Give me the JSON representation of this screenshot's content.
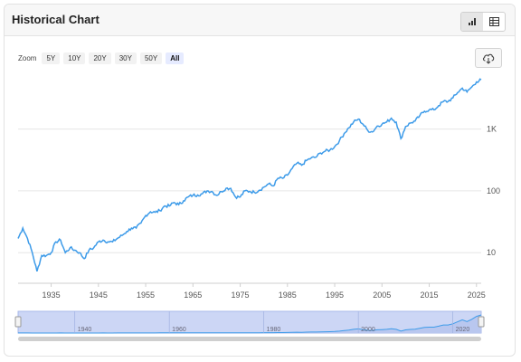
{
  "header": {
    "title": "Historical Chart"
  },
  "view_toggle": {
    "chart_icon": "bar-chart-icon",
    "table_icon": "table-icon"
  },
  "zoom": {
    "label": "Zoom",
    "options": [
      "5Y",
      "10Y",
      "20Y",
      "30Y",
      "50Y",
      "All"
    ],
    "selected": "All"
  },
  "download_icon": "cloud-download-icon",
  "colors": {
    "line": "#3d9be9",
    "navigator_fill": "#ccd6f5",
    "navigator_border": "#a9b9ea",
    "grid": "#e6e6e6"
  },
  "chart_data": {
    "type": "line",
    "y_scale": "log",
    "xlim": [
      1928,
      2026
    ],
    "ylim": [
      3.2,
      8000
    ],
    "x_ticks": [
      "1935",
      "1945",
      "1955",
      "1965",
      "1975",
      "1985",
      "1995",
      "2005",
      "2015",
      "2025"
    ],
    "y_ticks": [
      {
        "value": 10,
        "label": "10"
      },
      {
        "value": 100,
        "label": "100"
      },
      {
        "value": 1000,
        "label": "1K"
      }
    ],
    "series": [
      {
        "values": [
          [
            1928,
            17
          ],
          [
            1929,
            25
          ],
          [
            1930,
            17
          ],
          [
            1931,
            10
          ],
          [
            1932,
            5
          ],
          [
            1933,
            9
          ],
          [
            1934,
            9
          ],
          [
            1935,
            10
          ],
          [
            1936,
            15
          ],
          [
            1937,
            16
          ],
          [
            1938,
            10
          ],
          [
            1939,
            12
          ],
          [
            1940,
            11
          ],
          [
            1941,
            10
          ],
          [
            1942,
            8
          ],
          [
            1943,
            11
          ],
          [
            1944,
            12
          ],
          [
            1945,
            15
          ],
          [
            1946,
            16
          ],
          [
            1947,
            15
          ],
          [
            1948,
            15
          ],
          [
            1949,
            17
          ],
          [
            1950,
            19
          ],
          [
            1951,
            22
          ],
          [
            1952,
            25
          ],
          [
            1953,
            25
          ],
          [
            1954,
            30
          ],
          [
            1955,
            40
          ],
          [
            1956,
            46
          ],
          [
            1957,
            45
          ],
          [
            1958,
            48
          ],
          [
            1959,
            57
          ],
          [
            1960,
            57
          ],
          [
            1961,
            65
          ],
          [
            1962,
            60
          ],
          [
            1963,
            69
          ],
          [
            1964,
            80
          ],
          [
            1965,
            85
          ],
          [
            1966,
            86
          ],
          [
            1967,
            90
          ],
          [
            1968,
            100
          ],
          [
            1969,
            98
          ],
          [
            1970,
            85
          ],
          [
            1971,
            97
          ],
          [
            1972,
            110
          ],
          [
            1973,
            110
          ],
          [
            1974,
            80
          ],
          [
            1975,
            80
          ],
          [
            1976,
            100
          ],
          [
            1977,
            98
          ],
          [
            1978,
            95
          ],
          [
            1979,
            102
          ],
          [
            1980,
            115
          ],
          [
            1981,
            130
          ],
          [
            1982,
            120
          ],
          [
            1983,
            160
          ],
          [
            1984,
            160
          ],
          [
            1985,
            180
          ],
          [
            1986,
            230
          ],
          [
            1987,
            280
          ],
          [
            1988,
            260
          ],
          [
            1989,
            310
          ],
          [
            1990,
            340
          ],
          [
            1991,
            350
          ],
          [
            1992,
            410
          ],
          [
            1993,
            440
          ],
          [
            1994,
            460
          ],
          [
            1995,
            520
          ],
          [
            1996,
            650
          ],
          [
            1997,
            850
          ],
          [
            1998,
            1050
          ],
          [
            1999,
            1300
          ],
          [
            2000,
            1450
          ],
          [
            2001,
            1200
          ],
          [
            2002,
            950
          ],
          [
            2003,
            900
          ],
          [
            2004,
            1120
          ],
          [
            2005,
            1200
          ],
          [
            2006,
            1300
          ],
          [
            2007,
            1500
          ],
          [
            2008,
            1300
          ],
          [
            2009,
            700
          ],
          [
            2010,
            1100
          ],
          [
            2011,
            1250
          ],
          [
            2012,
            1350
          ],
          [
            2013,
            1650
          ],
          [
            2014,
            1950
          ],
          [
            2015,
            2050
          ],
          [
            2016,
            2050
          ],
          [
            2017,
            2400
          ],
          [
            2018,
            2800
          ],
          [
            2019,
            2800
          ],
          [
            2020,
            3200
          ],
          [
            2021,
            3900
          ],
          [
            2022,
            4600
          ],
          [
            2023,
            4000
          ],
          [
            2024,
            4800
          ],
          [
            2025,
            5800
          ],
          [
            2026,
            6300
          ]
        ]
      }
    ]
  },
  "navigator": {
    "ticks": [
      "1940",
      "1960",
      "1980",
      "2000",
      "2020"
    ]
  }
}
